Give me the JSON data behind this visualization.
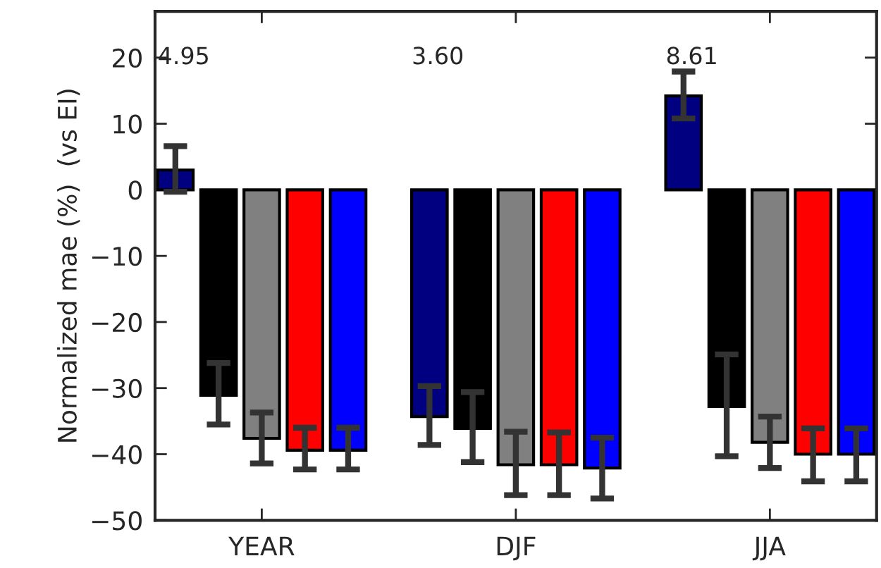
{
  "chart_data": {
    "type": "bar",
    "ylabel": "Normalized mae (%)  (vs EI)",
    "categories": [
      "YEAR",
      "DJF",
      "JJA"
    ],
    "series": [
      {
        "color": "#000080",
        "values": [
          3.0,
          -34.3,
          14.2
        ],
        "errors": [
          [
            -0.3,
            6.6
          ],
          [
            -38.6,
            -29.7
          ],
          [
            10.8,
            17.9
          ]
        ]
      },
      {
        "color": "#000000",
        "values": [
          -31.1,
          -36.1,
          -32.8
        ],
        "errors": [
          [
            -35.5,
            -26.2
          ],
          [
            -41.2,
            -30.6
          ],
          [
            -40.3,
            -24.9
          ]
        ]
      },
      {
        "color": "#808080",
        "values": [
          -37.6,
          -41.6,
          -38.2
        ],
        "errors": [
          [
            -41.4,
            -33.7
          ],
          [
            -46.2,
            -36.6
          ],
          [
            -42.1,
            -34.3
          ]
        ]
      },
      {
        "color": "#ff0000",
        "values": [
          -39.4,
          -41.6,
          -40.0
        ],
        "errors": [
          [
            -42.3,
            -36.0
          ],
          [
            -46.2,
            -36.7
          ],
          [
            -44.1,
            -36.1
          ]
        ]
      },
      {
        "color": "#0000ff",
        "values": [
          -39.4,
          -42.1,
          -40.0
        ],
        "errors": [
          [
            -42.3,
            -36.0
          ],
          [
            -46.7,
            -37.5
          ],
          [
            -44.1,
            -36.1
          ]
        ]
      }
    ],
    "ylim": [
      -50,
      27
    ],
    "yticks": [
      -50,
      -40,
      -30,
      -20,
      -10,
      0,
      10,
      20
    ],
    "annotations": [
      "4.95",
      "3.60",
      "8.61"
    ]
  }
}
